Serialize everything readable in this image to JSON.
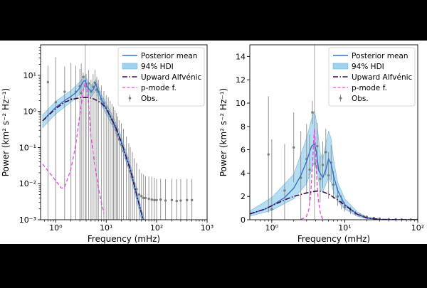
{
  "chart_data": [
    {
      "type": "line",
      "xscale": "log",
      "yscale": "log",
      "xlim": [
        0.5,
        1000
      ],
      "ylim": [
        0.001,
        70
      ],
      "xlabel": "Frequency (mHz)",
      "ylabel": "Power (km² s⁻² Hz⁻¹)",
      "xticks": [
        {
          "v": 1,
          "t": "10⁰"
        },
        {
          "v": 10,
          "t": "10¹"
        },
        {
          "v": 100,
          "t": "10²"
        },
        {
          "v": 1000,
          "t": "10³"
        }
      ],
      "yticks": [
        {
          "v": 0.001,
          "t": "10⁻³"
        },
        {
          "v": 0.01,
          "t": "10⁻²"
        },
        {
          "v": 0.1,
          "t": "10⁻¹"
        },
        {
          "v": 1,
          "t": "10⁰"
        },
        {
          "v": 10,
          "t": "10¹"
        }
      ],
      "legend_position": "top-right",
      "legend": [
        "Posterior mean",
        "94% HDI",
        "Upward Alfvénic",
        "p-mode f.",
        "Obs."
      ],
      "vline_x": 3.85,
      "series": [
        {
          "name": "Posterior mean",
          "x": [
            0.55,
            0.8,
            1,
            1.5,
            2,
            2.5,
            3,
            3.5,
            3.85,
            4.3,
            5,
            5.5,
            6.2,
            7,
            8,
            10,
            15,
            20,
            30,
            40,
            50,
            60
          ],
          "y": [
            0.55,
            0.95,
            1.3,
            2.0,
            2.6,
            3.3,
            4.5,
            6.8,
            7.2,
            4.6,
            3.6,
            4.0,
            5.8,
            3.6,
            2.2,
            1.2,
            0.4,
            0.14,
            0.025,
            0.005,
            0.0015,
            0.0006
          ]
        },
        {
          "name": "94% HDI upper",
          "x": [
            0.55,
            1,
            2,
            3,
            3.8,
            4.3,
            5,
            6.2,
            7,
            8,
            10,
            15,
            20,
            30,
            40,
            50,
            60
          ],
          "y": [
            0.8,
            1.9,
            3.8,
            6.6,
            9.8,
            7.2,
            5.2,
            7.6,
            5.0,
            3.0,
            1.7,
            0.55,
            0.2,
            0.035,
            0.007,
            0.002,
            0.0008
          ]
        },
        {
          "name": "94% HDI lower",
          "x": [
            0.55,
            1,
            2,
            3,
            3.8,
            4.3,
            5,
            6.2,
            7,
            8,
            10,
            15,
            20,
            30,
            40,
            50,
            60
          ],
          "y": [
            0.35,
            0.85,
            1.8,
            3.0,
            4.8,
            3.0,
            2.5,
            3.8,
            2.5,
            1.5,
            0.85,
            0.28,
            0.1,
            0.018,
            0.0035,
            0.001,
            0.0004
          ]
        },
        {
          "name": "Upward Alfvénic",
          "x": [
            0.55,
            0.8,
            1,
            1.5,
            2,
            3,
            4,
            5,
            6,
            8,
            10,
            15,
            20,
            30,
            40,
            50,
            60
          ],
          "y": [
            0.55,
            0.9,
            1.2,
            1.8,
            2.1,
            2.4,
            2.45,
            2.35,
            2.15,
            1.7,
            1.2,
            0.4,
            0.14,
            0.025,
            0.005,
            0.0015,
            0.0006
          ]
        },
        {
          "name": "p-mode f.",
          "x": [
            0.55,
            0.8,
            1,
            1.3,
            1.5,
            2,
            2.5,
            3,
            3.5,
            3.85,
            4.2,
            4.6,
            5,
            6,
            7,
            8,
            9
          ],
          "y": [
            0.035,
            0.018,
            0.012,
            0.0075,
            0.008,
            0.025,
            0.12,
            0.8,
            3.5,
            6.5,
            4.5,
            1.0,
            0.2,
            0.03,
            0.008,
            0.003,
            0.0015
          ]
        }
      ],
      "obs": {
        "name": "Obs.",
        "x": [
          0.7,
          1,
          1.5,
          2,
          2.5,
          3,
          3.2,
          3.5,
          4,
          4.5,
          5,
          5.5,
          6,
          6.5,
          7,
          8,
          9,
          10,
          11,
          12,
          13,
          14,
          15,
          16,
          17,
          18,
          20,
          22,
          25,
          28,
          30,
          33,
          36,
          40,
          45,
          50,
          55,
          60,
          70,
          80,
          90,
          100,
          120,
          150,
          200,
          250,
          300,
          400,
          500
        ],
        "y": [
          6.5,
          1.8,
          3.5,
          2.2,
          3.5,
          5,
          3.2,
          9,
          5,
          6,
          3.5,
          4.8,
          6.2,
          4,
          3.5,
          2.2,
          1.7,
          1.3,
          1.0,
          0.75,
          0.6,
          0.45,
          0.38,
          0.3,
          0.22,
          0.17,
          0.12,
          0.08,
          0.05,
          0.032,
          0.022,
          0.015,
          0.01,
          0.007,
          0.005,
          0.0045,
          0.004,
          0.004,
          0.0038,
          0.0036,
          0.0035,
          0.0035,
          0.0036,
          0.0034,
          0.0035,
          0.0033,
          0.0034,
          0.0035,
          0.0035
        ],
        "err_hi": [
          12,
          30,
          14,
          20,
          15,
          10,
          18,
          3,
          6,
          8,
          4,
          6,
          8,
          5,
          4,
          3,
          2,
          1.5,
          1.5,
          1.2,
          1,
          0.9,
          0.7,
          0.6,
          0.5,
          0.4,
          0.35,
          0.25,
          0.15,
          0.1,
          0.08,
          0.06,
          0.04,
          0.03,
          0.02,
          0.015,
          0.014,
          0.012,
          0.012,
          0.012,
          0.011,
          0.01,
          0.01,
          0.01,
          0.01,
          0.01,
          0.01,
          0.01,
          0.01
        ]
      }
    },
    {
      "type": "line",
      "xscale": "log",
      "yscale": "linear",
      "xlim": [
        0.5,
        100
      ],
      "ylim": [
        0,
        15
      ],
      "xlabel": "Frequency (mHz)",
      "ylabel": "Power (km² s⁻² Hz⁻¹)",
      "xticks": [
        {
          "v": 1,
          "t": "10⁰"
        },
        {
          "v": 10,
          "t": "10¹"
        },
        {
          "v": 100,
          "t": "10²"
        }
      ],
      "yticks": [
        {
          "v": 0,
          "t": "0"
        },
        {
          "v": 2,
          "t": "2"
        },
        {
          "v": 4,
          "t": "4"
        },
        {
          "v": 6,
          "t": "6"
        },
        {
          "v": 8,
          "t": "8"
        },
        {
          "v": 10,
          "t": "10"
        },
        {
          "v": 12,
          "t": "12"
        },
        {
          "v": 14,
          "t": "14"
        }
      ],
      "legend_position": "top-right",
      "legend": [
        "Posterior mean",
        "94% HDI",
        "Upward Alfvénic",
        "p-mode f.",
        "Obs."
      ],
      "vline_x": 3.85,
      "series": [
        {
          "name": "Posterior mean",
          "x": [
            0.5,
            0.8,
            1,
            1.5,
            2,
            2.5,
            3,
            3.5,
            3.85,
            4.1,
            4.4,
            5,
            5.5,
            6,
            6.5,
            7,
            8,
            10,
            15,
            20,
            30,
            50,
            100
          ],
          "y": [
            0.5,
            0.9,
            1.2,
            1.9,
            2.7,
            3.8,
            5.0,
            6.3,
            6.5,
            5.8,
            4.2,
            3.6,
            4.3,
            5.2,
            4.8,
            3.8,
            2.5,
            1.3,
            0.45,
            0.16,
            0.03,
            0.005,
            0.001
          ]
        },
        {
          "name": "94% HDI upper",
          "x": [
            0.5,
            1,
            2,
            3,
            3.5,
            3.85,
            4.2,
            4.6,
            5,
            5.5,
            6,
            6.5,
            7,
            8,
            10,
            15,
            20,
            30,
            50,
            100
          ],
          "y": [
            0.75,
            1.9,
            3.9,
            7.0,
            8.6,
            9.4,
            8.0,
            5.8,
            5.2,
            6.5,
            7.6,
            7.0,
            5.2,
            3.2,
            1.8,
            0.65,
            0.24,
            0.05,
            0.008,
            0.002
          ]
        },
        {
          "name": "94% HDI lower",
          "x": [
            0.5,
            1,
            2,
            3,
            3.5,
            3.85,
            4.2,
            4.6,
            5,
            5.5,
            6,
            6.5,
            7,
            8,
            10,
            15,
            20,
            30,
            50,
            100
          ],
          "y": [
            0.3,
            0.8,
            1.8,
            3.1,
            4.2,
            5.0,
            4.0,
            2.6,
            2.4,
            3.0,
            3.6,
            3.2,
            2.4,
            1.6,
            0.9,
            0.28,
            0.1,
            0.02,
            0.003,
            0.0005
          ]
        },
        {
          "name": "Upward Alfvénic",
          "x": [
            0.5,
            0.8,
            1,
            1.5,
            2,
            3,
            4,
            4.5,
            5,
            6,
            8,
            10,
            15,
            20,
            30,
            50,
            100
          ],
          "y": [
            0.5,
            0.9,
            1.2,
            1.7,
            2.0,
            2.3,
            2.45,
            2.45,
            2.4,
            2.2,
            1.7,
            1.25,
            0.45,
            0.16,
            0.03,
            0.005,
            0.001
          ]
        },
        {
          "name": "p-mode f.",
          "x": [
            2.5,
            2.8,
            3,
            3.2,
            3.4,
            3.6,
            3.75,
            3.85,
            3.95,
            4.1,
            4.3,
            4.5,
            4.7,
            5.0
          ],
          "y": [
            0.05,
            0.15,
            0.3,
            0.8,
            2.0,
            4.5,
            6.8,
            7.8,
            6.5,
            4.0,
            2.0,
            1.0,
            0.4,
            0.05
          ]
        }
      ],
      "obs": {
        "name": "Obs.",
        "x": [
          0.9,
          1,
          1.5,
          2,
          2.5,
          3,
          3.3,
          3.6,
          3.9,
          4.2,
          4.6,
          5,
          5.5,
          6,
          6.5,
          7,
          8,
          9,
          10,
          12,
          14,
          16,
          18,
          20,
          25,
          30,
          40,
          50,
          60,
          80,
          100
        ],
        "y": [
          5.6,
          0.9,
          2.5,
          6.2,
          3.6,
          5.2,
          4.3,
          9.2,
          4.8,
          6.3,
          3.5,
          4.7,
          5.8,
          3.8,
          4.9,
          3.0,
          2.0,
          1.5,
          1.1,
          0.8,
          0.55,
          0.4,
          0.3,
          0.25,
          0.15,
          0.1,
          0.05,
          0.03,
          0.02,
          0.01,
          0.005
        ],
        "err_hi": [
          5,
          6,
          4,
          3,
          4,
          3,
          3,
          1,
          2,
          2,
          2,
          2,
          2,
          2,
          1.5,
          1.2,
          0.8,
          0.6,
          0.4,
          0.3,
          0.2,
          0.15,
          0.1,
          0.1,
          0.05,
          0.05,
          0.03,
          0.02,
          0.02,
          0.01,
          0.01
        ]
      }
    }
  ]
}
